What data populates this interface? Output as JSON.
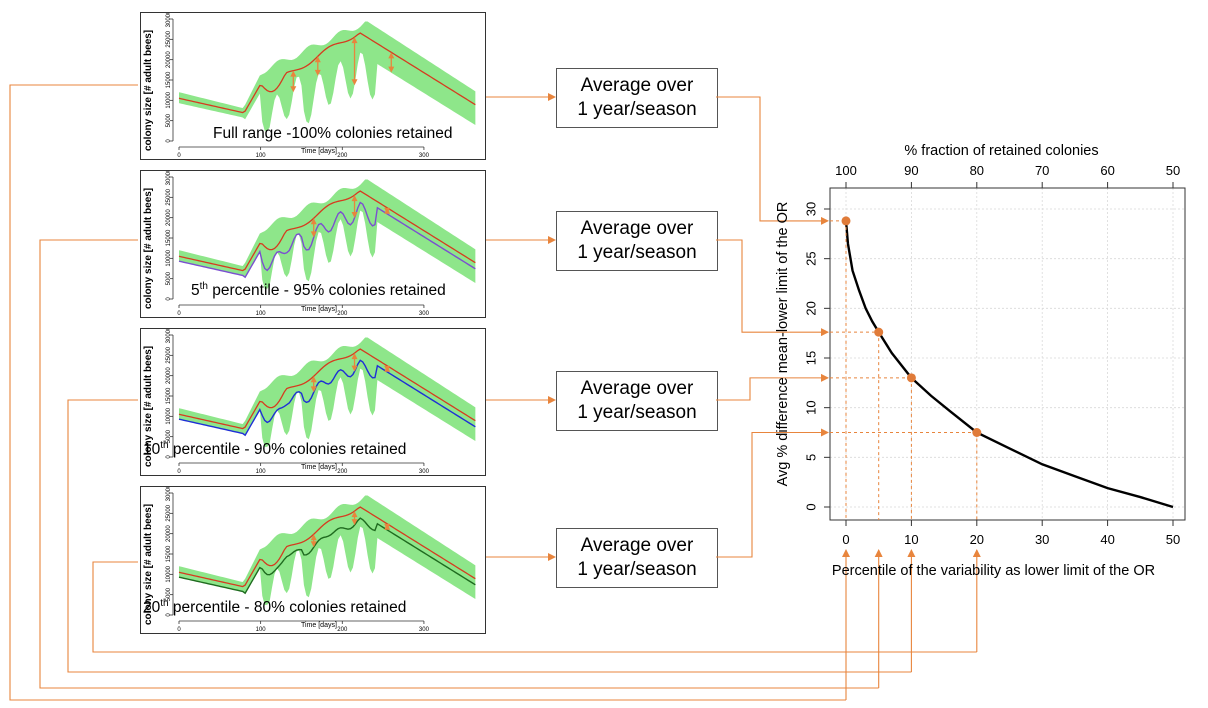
{
  "panels": [
    {
      "caption_pre": "Full range -100% colonies retained",
      "caption_sup": "",
      "caption_post": "",
      "ylabel": "colony size [# adult bees]",
      "xlabel": "Time [days]",
      "bottom_line_color": "#c0392b"
    },
    {
      "caption_pre": "5",
      "caption_sup": "th",
      "caption_post": " percentile - 95% colonies retained",
      "ylabel": "colony size [# adult bees]",
      "xlabel": "Time [days]",
      "bottom_line_color": "#7b4fd0"
    },
    {
      "caption_pre": "10",
      "caption_sup": "th",
      "caption_post": " percentile - 90% colonies retained",
      "ylabel": "colony size [# adult bees]",
      "xlabel": "Time [days]",
      "bottom_line_color": "#1e2fd6"
    },
    {
      "caption_pre": "20",
      "caption_sup": "th",
      "caption_post": " percentile - 80% colonies retained",
      "ylabel": "colony size [# adult bees]",
      "xlabel": "Time [days]",
      "bottom_line_color": "#1f6b1f"
    }
  ],
  "panel_axes": {
    "x_ticks": [
      "0",
      "100",
      "200",
      "300"
    ],
    "y_ticks": [
      "0",
      "5000",
      "10000",
      "15000",
      "20000",
      "25000",
      "30000"
    ]
  },
  "avg_boxes": [
    {
      "line1": "Average over",
      "line2": "1 year/season"
    },
    {
      "line1": "Average over",
      "line2": "1 year/season"
    },
    {
      "line1": "Average over",
      "line2": "1 year/season"
    },
    {
      "line1": "Average over",
      "line2": "1 year/season"
    }
  ],
  "colors": {
    "band": "#8ee68a",
    "mean_line": "#d63b1f",
    "arrow": "#e8853d",
    "points": "#e07b39",
    "curve": "#000000"
  },
  "chart_data": {
    "type": "line",
    "title": "",
    "top_axis_label": "% fraction of retained colonies",
    "top_ticks": [
      "100",
      "90",
      "80",
      "70",
      "60",
      "50"
    ],
    "xlabel": "Percentile of the variability as lower limit of the OR",
    "ylabel": "Avg % difference mean-lower limit of the OR",
    "x_ticks": [
      "0",
      "10",
      "20",
      "30",
      "40",
      "50"
    ],
    "y_ticks": [
      "0",
      "5",
      "10",
      "15",
      "20",
      "25",
      "30"
    ],
    "xlim": [
      0,
      50
    ],
    "ylim": [
      0,
      30
    ],
    "grid": true,
    "series": [
      {
        "x": [
          0,
          0.3,
          1,
          2,
          3,
          4,
          5,
          7,
          10,
          13,
          16,
          20,
          25,
          30,
          35,
          40,
          45,
          50
        ],
        "y": [
          28.8,
          26.5,
          23.8,
          21.8,
          20.0,
          18.7,
          17.6,
          15.5,
          13.0,
          11.2,
          9.6,
          7.5,
          5.9,
          4.3,
          3.1,
          1.9,
          1.0,
          0.0
        ]
      }
    ],
    "points": [
      {
        "x": 0,
        "y": 28.8
      },
      {
        "x": 5,
        "y": 17.6
      },
      {
        "x": 10,
        "y": 13.0
      },
      {
        "x": 20,
        "y": 7.5
      }
    ]
  }
}
